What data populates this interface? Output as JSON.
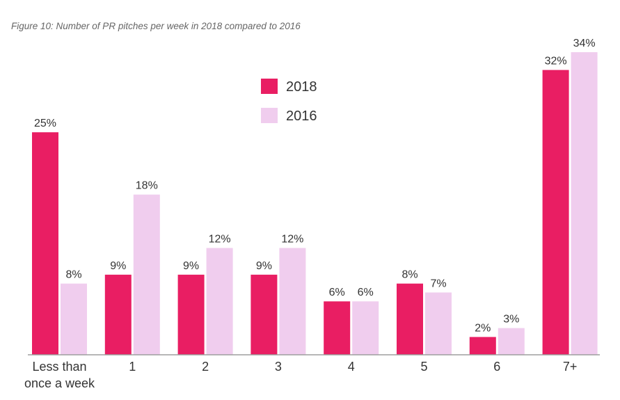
{
  "caption": "Figure 10: Number of PR pitches per week in 2018 compared to 2016",
  "chart_data": {
    "type": "bar",
    "title": "Figure 10: Number of PR pitches per week in 2018 compared to 2016",
    "categories": [
      [
        "Less than",
        "once a week"
      ],
      [
        "1"
      ],
      [
        "2"
      ],
      [
        "3"
      ],
      [
        "4"
      ],
      [
        "5"
      ],
      [
        "6"
      ],
      [
        "7+"
      ]
    ],
    "series": [
      {
        "name": "2018",
        "color": "#e91e63",
        "values": [
          25,
          9,
          9,
          9,
          6,
          8,
          2,
          32
        ],
        "labels": [
          "25%",
          "9%",
          "9%",
          "9%",
          "6%",
          "8%",
          "2%",
          "32%"
        ]
      },
      {
        "name": "2016",
        "color": "#f0cdee",
        "values": [
          8,
          18,
          12,
          12,
          6,
          7,
          3,
          34
        ],
        "labels": [
          "8%",
          "18%",
          "12%",
          "12%",
          "6%",
          "7%",
          "3%",
          "34%"
        ]
      }
    ],
    "ylim": [
      0,
      34
    ],
    "legend": "top-center",
    "grid": false,
    "xlabel": "",
    "ylabel": ""
  }
}
